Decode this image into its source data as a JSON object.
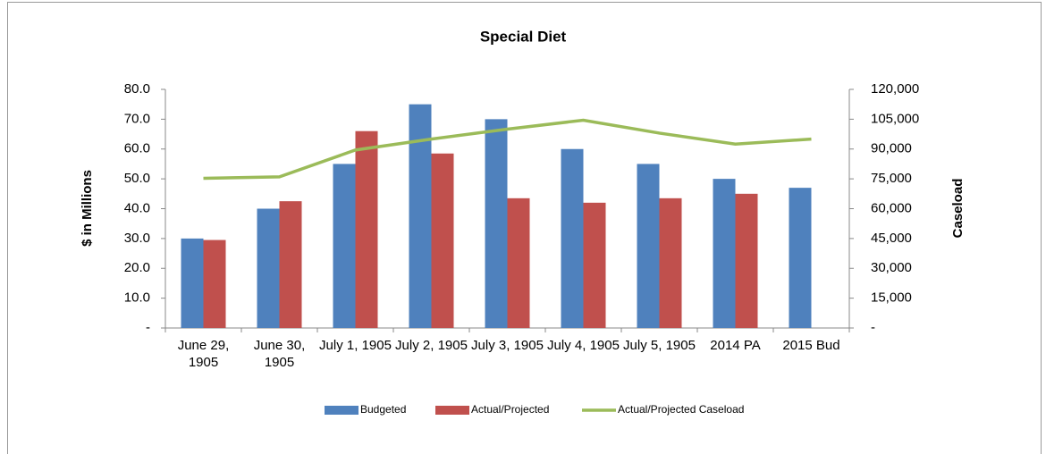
{
  "chart_data": {
    "type": "bar_line",
    "title": "Special Diet",
    "y_label": "$ in Millions",
    "y2_label": "Caseload",
    "categories": [
      "June 29, 1905",
      "June 30, 1905",
      "July 1, 1905",
      "July 2, 1905",
      "July 3, 1905",
      "July 4, 1905",
      "July 5, 1905",
      "2014 PA",
      "2015 Bud"
    ],
    "series": [
      {
        "name": "Budgeted",
        "color": "#4f81bd",
        "type": "bar",
        "values": [
          30,
          40,
          55,
          75,
          70,
          60,
          55,
          50,
          47
        ]
      },
      {
        "name": "Actual/Projected",
        "color": "#c0504d",
        "type": "bar",
        "values": [
          29.5,
          42.5,
          66,
          58.5,
          43.5,
          42,
          43.5,
          45,
          null
        ]
      },
      {
        "name": "Actual/Projected Caseload",
        "color": "#9bbb59",
        "type": "line",
        "axis": "y2",
        "values": [
          75300,
          76000,
          89500,
          95000,
          100000,
          104500,
          98000,
          92500,
          95000
        ]
      }
    ],
    "ylim": [
      0,
      80
    ],
    "yticks": [
      {
        "value": 0,
        "label": "-"
      },
      {
        "value": 10,
        "label": "10.0"
      },
      {
        "value": 20,
        "label": "20.0"
      },
      {
        "value": 30,
        "label": "30.0"
      },
      {
        "value": 40,
        "label": "40.0"
      },
      {
        "value": 50,
        "label": "50.0"
      },
      {
        "value": 60,
        "label": "60.0"
      },
      {
        "value": 70,
        "label": "70.0"
      },
      {
        "value": 80,
        "label": "80.0"
      }
    ],
    "y2lim": [
      0,
      120000
    ],
    "y2ticks": [
      {
        "value": 0,
        "label": "-"
      },
      {
        "value": 15000,
        "label": "15,000"
      },
      {
        "value": 30000,
        "label": "30,000"
      },
      {
        "value": 45000,
        "label": "45,000"
      },
      {
        "value": 60000,
        "label": "60,000"
      },
      {
        "value": 75000,
        "label": "75,000"
      },
      {
        "value": 90000,
        "label": "90,000"
      },
      {
        "value": 105000,
        "label": "105,000"
      },
      {
        "value": 120000,
        "label": "120,000"
      }
    ],
    "grid": false,
    "legend": "bottom"
  }
}
